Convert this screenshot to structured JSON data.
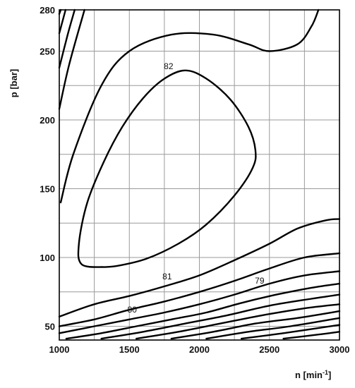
{
  "chart_data": {
    "type": "line",
    "title": "",
    "xlabel": "n [min",
    "xlabel_sup": "-1",
    "xlabel_close": "]",
    "ylabel": "p [bar]",
    "xlim": [
      1000,
      3000
    ],
    "ylim": [
      40,
      280
    ],
    "x_ticks": [
      1000,
      1500,
      2000,
      2500,
      3000
    ],
    "y_ticks": [
      50,
      100,
      150,
      200,
      250,
      280
    ],
    "x_tick_labels": [
      "1000",
      "1500",
      "2000",
      "2500",
      "3000"
    ],
    "y_tick_labels": [
      "50",
      "100",
      "150",
      "200",
      "250",
      "280"
    ],
    "x_grid": [
      1000,
      1250,
      1500,
      1750,
      2000,
      2250,
      2500,
      2750,
      3000
    ],
    "y_grid": [
      50,
      75,
      100,
      125,
      150,
      175,
      200,
      225,
      250,
      280
    ],
    "grid": true,
    "contour_labels": [
      {
        "text": "82",
        "x": 1780,
        "y": 237
      },
      {
        "text": "81",
        "x": 1770,
        "y": 84
      },
      {
        "text": "80",
        "x": 1520,
        "y": 60
      },
      {
        "text": "79",
        "x": 2430,
        "y": 81
      }
    ],
    "series": [
      {
        "points": [
          [
            1320,
            93
          ],
          [
            1420,
            94
          ],
          [
            1620,
            99
          ],
          [
            1850,
            110
          ],
          [
            2050,
            124
          ],
          [
            2250,
            145
          ],
          [
            2380,
            165
          ],
          [
            2400,
            178
          ],
          [
            2350,
            195
          ],
          [
            2220,
            215
          ],
          [
            2050,
            230
          ],
          [
            1900,
            236
          ],
          [
            1750,
            230
          ],
          [
            1600,
            216
          ],
          [
            1450,
            195
          ],
          [
            1320,
            170
          ],
          [
            1200,
            140
          ],
          [
            1140,
            110
          ],
          [
            1160,
            95
          ],
          [
            1320,
            93
          ]
        ]
      },
      {
        "points": [
          [
            1010,
            140
          ],
          [
            1100,
            175
          ],
          [
            1300,
            225
          ],
          [
            1500,
            250
          ],
          [
            1800,
            262
          ],
          [
            2100,
            262
          ],
          [
            2350,
            255
          ],
          [
            2500,
            250
          ],
          [
            2700,
            255
          ],
          [
            2800,
            268
          ],
          [
            2850,
            280
          ]
        ]
      },
      {
        "points": [
          [
            1000,
            208
          ],
          [
            1070,
            240
          ],
          [
            1180,
            280
          ]
        ]
      },
      {
        "points": [
          [
            1000,
            238
          ],
          [
            1060,
            262
          ],
          [
            1110,
            280
          ]
        ]
      },
      {
        "points": [
          [
            1000,
            263
          ],
          [
            1045,
            280
          ]
        ]
      },
      {
        "points": [
          [
            1000,
            277
          ],
          [
            1010,
            280
          ]
        ]
      },
      {
        "points": [
          [
            1000,
            57
          ],
          [
            1250,
            66
          ],
          [
            1500,
            72
          ],
          [
            1750,
            79
          ],
          [
            2000,
            87
          ],
          [
            2250,
            98
          ],
          [
            2500,
            110
          ],
          [
            2700,
            121
          ],
          [
            2900,
            127
          ],
          [
            3000,
            128
          ]
        ]
      },
      {
        "points": [
          [
            1000,
            50
          ],
          [
            1250,
            55
          ],
          [
            1500,
            62
          ],
          [
            1750,
            68
          ],
          [
            2000,
            75
          ],
          [
            2250,
            83
          ],
          [
            2500,
            92
          ],
          [
            2750,
            100
          ],
          [
            3000,
            103
          ]
        ]
      },
      {
        "points": [
          [
            1000,
            45
          ],
          [
            1250,
            50
          ],
          [
            1500,
            55
          ],
          [
            1750,
            60
          ],
          [
            2000,
            66
          ],
          [
            2250,
            73
          ],
          [
            2500,
            81
          ],
          [
            2750,
            87
          ],
          [
            3000,
            90
          ]
        ]
      },
      {
        "points": [
          [
            1050,
            41
          ],
          [
            1300,
            45
          ],
          [
            1550,
            50
          ],
          [
            1800,
            55
          ],
          [
            2050,
            60
          ],
          [
            2300,
            67
          ],
          [
            2550,
            73
          ],
          [
            2800,
            78
          ],
          [
            3000,
            81
          ]
        ]
      },
      {
        "points": [
          [
            1300,
            41
          ],
          [
            1600,
            46
          ],
          [
            1900,
            52
          ],
          [
            2200,
            58
          ],
          [
            2500,
            65
          ],
          [
            2800,
            70
          ],
          [
            3000,
            73
          ]
        ]
      },
      {
        "points": [
          [
            1550,
            41
          ],
          [
            1850,
            46
          ],
          [
            2150,
            52
          ],
          [
            2450,
            58
          ],
          [
            2750,
            63
          ],
          [
            3000,
            66
          ]
        ]
      },
      {
        "points": [
          [
            1800,
            41
          ],
          [
            2100,
            46
          ],
          [
            2400,
            52
          ],
          [
            2700,
            56
          ],
          [
            3000,
            61
          ]
        ]
      },
      {
        "points": [
          [
            2050,
            41
          ],
          [
            2350,
            46
          ],
          [
            2650,
            50
          ],
          [
            3000,
            56
          ]
        ]
      },
      {
        "points": [
          [
            2300,
            41
          ],
          [
            2600,
            45
          ],
          [
            3000,
            51
          ]
        ]
      },
      {
        "points": [
          [
            2600,
            41
          ],
          [
            2850,
            44
          ],
          [
            3000,
            46
          ]
        ]
      }
    ]
  }
}
